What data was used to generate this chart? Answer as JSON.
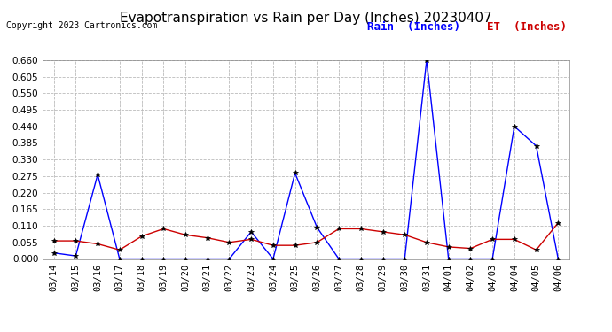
{
  "title": "Evapotranspiration vs Rain per Day (Inches) 20230407",
  "copyright": "Copyright 2023 Cartronics.com",
  "legend_rain": "Rain  (Inches)",
  "legend_et": "ET  (Inches)",
  "x_labels": [
    "03/14",
    "03/15",
    "03/16",
    "03/17",
    "03/18",
    "03/19",
    "03/20",
    "03/21",
    "03/22",
    "03/23",
    "03/24",
    "03/25",
    "03/26",
    "03/27",
    "03/28",
    "03/29",
    "03/30",
    "03/31",
    "04/01",
    "04/02",
    "04/03",
    "04/04",
    "04/05",
    "04/06"
  ],
  "rain_values": [
    0.02,
    0.01,
    0.28,
    0.0,
    0.0,
    0.0,
    0.0,
    0.0,
    0.0,
    0.09,
    0.0,
    0.285,
    0.105,
    0.0,
    0.0,
    0.0,
    0.0,
    0.66,
    0.0,
    0.0,
    0.0,
    0.44,
    0.375,
    0.0
  ],
  "et_values": [
    0.06,
    0.06,
    0.05,
    0.03,
    0.075,
    0.1,
    0.08,
    0.07,
    0.055,
    0.065,
    0.045,
    0.045,
    0.055,
    0.1,
    0.1,
    0.09,
    0.08,
    0.055,
    0.04,
    0.035,
    0.065,
    0.065,
    0.03,
    0.12
  ],
  "rain_color": "#0000ff",
  "et_color": "#cc0000",
  "legend_rain_color": "#0000ff",
  "legend_et_color": "#cc0000",
  "y_max": 0.66,
  "y_min": 0.0,
  "y_ticks": [
    0.0,
    0.055,
    0.11,
    0.165,
    0.22,
    0.275,
    0.33,
    0.385,
    0.44,
    0.495,
    0.55,
    0.605,
    0.66
  ],
  "bg_color": "#ffffff",
  "grid_color": "#bbbbbb",
  "title_fontsize": 11,
  "copyright_fontsize": 7,
  "tick_fontsize": 7.5,
  "legend_fontsize": 9
}
